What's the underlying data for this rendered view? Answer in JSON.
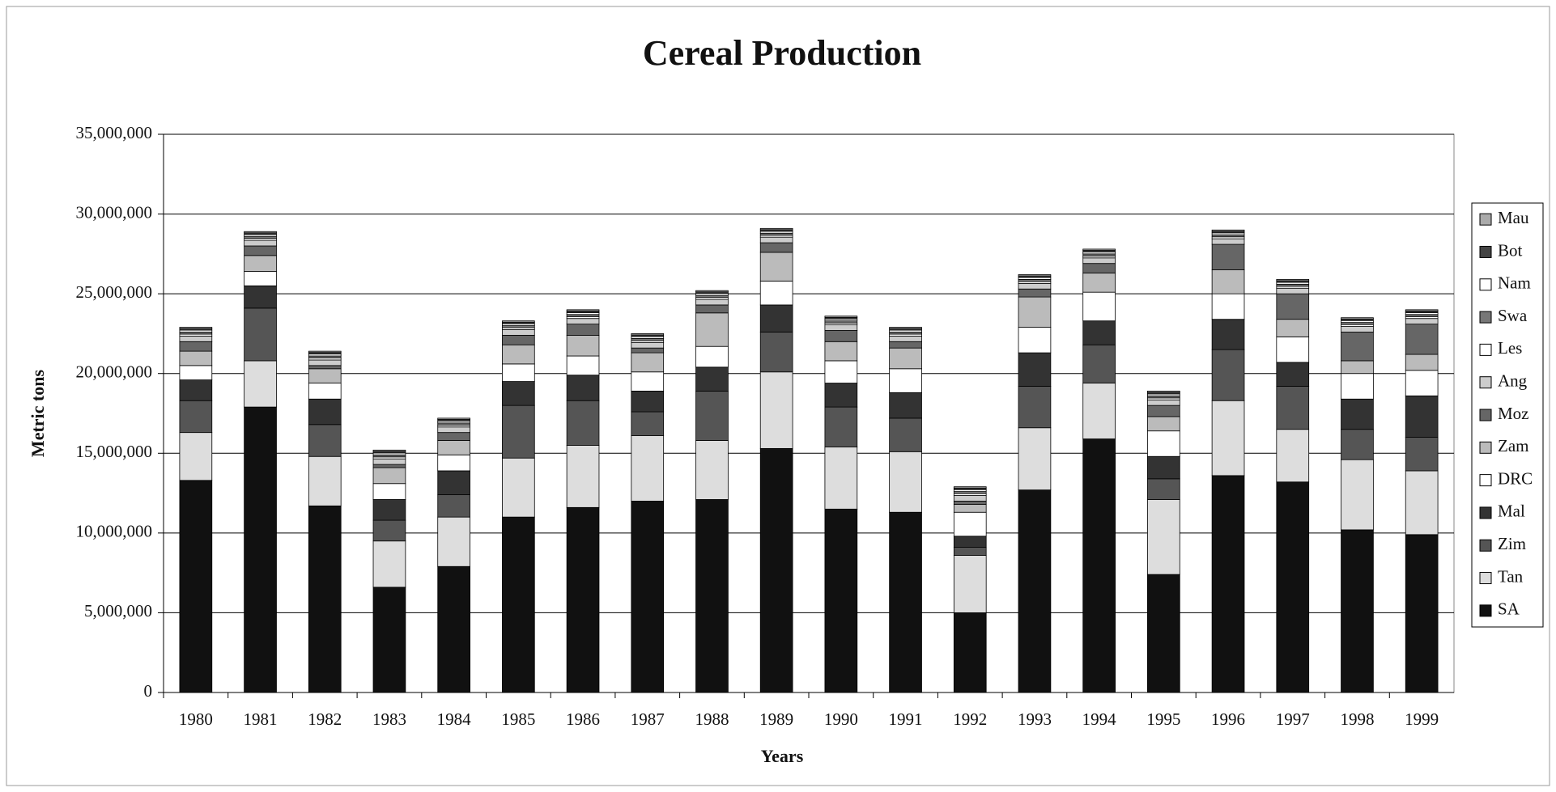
{
  "chart_data": {
    "type": "stacked_bar",
    "title": "Cereal Production",
    "x_label": "Years",
    "y_label": "Metric tons",
    "categories": [
      "1980",
      "1981",
      "1982",
      "1983",
      "1984",
      "1985",
      "1986",
      "1987",
      "1988",
      "1989",
      "1990",
      "1991",
      "1992",
      "1993",
      "1994",
      "1995",
      "1996",
      "1997",
      "1998",
      "1999"
    ],
    "ylim": [
      0,
      35000000
    ],
    "yticks": [
      0,
      {
        "value": 5000000,
        "label": "5,000,000"
      },
      {
        "value": 10000000,
        "label": "10,000,000"
      },
      {
        "value": 15000000,
        "label": "15,000,000"
      },
      {
        "value": 20000000,
        "label": "20,000,000"
      },
      {
        "value": 25000000,
        "label": "25,000,000"
      },
      {
        "value": 30000000,
        "label": "30,000,000"
      },
      {
        "value": 35000000,
        "label": "35,000,000"
      }
    ],
    "grid": true,
    "legend": "right",
    "series": [
      {
        "name": "SA",
        "color": "#111111",
        "values": [
          13300000,
          17900000,
          11700000,
          6600000,
          7900000,
          11000000,
          11600000,
          12000000,
          12100000,
          15300000,
          11500000,
          11300000,
          5000000,
          12700000,
          15900000,
          7400000,
          13600000,
          13200000,
          10200000,
          9900000
        ]
      },
      {
        "name": "Tan",
        "color": "#dddddd",
        "values": [
          3000000,
          2900000,
          3100000,
          2900000,
          3100000,
          3700000,
          3900000,
          4100000,
          3700000,
          4800000,
          3900000,
          3800000,
          3600000,
          3900000,
          3500000,
          4700000,
          4700000,
          3300000,
          4400000,
          4000000
        ]
      },
      {
        "name": "Zim",
        "color": "#555555",
        "values": [
          2000000,
          3300000,
          2000000,
          1300000,
          1400000,
          3300000,
          2800000,
          1500000,
          3100000,
          2500000,
          2500000,
          2100000,
          500000,
          2600000,
          2400000,
          1300000,
          3200000,
          2700000,
          1900000,
          2100000
        ]
      },
      {
        "name": "Mal",
        "color": "#333333",
        "values": [
          1300000,
          1400000,
          1600000,
          1300000,
          1500000,
          1500000,
          1600000,
          1300000,
          1500000,
          1700000,
          1500000,
          1600000,
          700000,
          2100000,
          1500000,
          1400000,
          1900000,
          1500000,
          1900000,
          2600000
        ]
      },
      {
        "name": "DRC",
        "color": "#ffffff",
        "values": [
          900000,
          900000,
          1000000,
          1000000,
          1000000,
          1100000,
          1200000,
          1200000,
          1300000,
          1500000,
          1400000,
          1500000,
          1500000,
          1600000,
          1800000,
          1600000,
          1600000,
          1600000,
          1600000,
          1600000
        ]
      },
      {
        "name": "Zam",
        "color": "#bbbbbb",
        "values": [
          900000,
          1000000,
          900000,
          1000000,
          900000,
          1200000,
          1300000,
          1200000,
          2100000,
          1800000,
          1200000,
          1300000,
          500000,
          1900000,
          1200000,
          900000,
          1500000,
          1100000,
          800000,
          1000000
        ]
      },
      {
        "name": "Moz",
        "color": "#666666",
        "values": [
          600000,
          600000,
          200000,
          200000,
          500000,
          600000,
          700000,
          300000,
          500000,
          600000,
          700000,
          400000,
          200000,
          500000,
          600000,
          700000,
          1600000,
          1600000,
          1800000,
          1900000
        ]
      },
      {
        "name": "Ang",
        "color": "#cccccc",
        "values": [
          350000,
          350000,
          350000,
          350000,
          350000,
          350000,
          350000,
          350000,
          350000,
          350000,
          350000,
          350000,
          350000,
          350000,
          350000,
          350000,
          350000,
          350000,
          350000,
          350000
        ]
      },
      {
        "name": "Les",
        "color": "#ffffff",
        "values": [
          120000,
          120000,
          120000,
          120000,
          120000,
          120000,
          120000,
          120000,
          120000,
          120000,
          120000,
          120000,
          120000,
          120000,
          120000,
          120000,
          120000,
          120000,
          120000,
          120000
        ]
      },
      {
        "name": "Swa",
        "color": "#777777",
        "values": [
          130000,
          130000,
          130000,
          130000,
          130000,
          130000,
          130000,
          130000,
          130000,
          130000,
          130000,
          130000,
          130000,
          130000,
          130000,
          130000,
          130000,
          130000,
          130000,
          130000
        ]
      },
      {
        "name": "Nam",
        "color": "#ffffff",
        "values": [
          120000,
          120000,
          120000,
          120000,
          120000,
          120000,
          120000,
          120000,
          120000,
          120000,
          120000,
          120000,
          120000,
          120000,
          120000,
          120000,
          120000,
          120000,
          120000,
          120000
        ]
      },
      {
        "name": "Bot",
        "color": "#444444",
        "values": [
          100000,
          100000,
          100000,
          100000,
          100000,
          100000,
          100000,
          100000,
          100000,
          100000,
          100000,
          100000,
          100000,
          100000,
          100000,
          100000,
          100000,
          100000,
          100000,
          100000
        ]
      },
      {
        "name": "Mau",
        "color": "#aaaaaa",
        "values": [
          80000,
          80000,
          80000,
          80000,
          80000,
          80000,
          80000,
          80000,
          80000,
          80000,
          80000,
          80000,
          80000,
          80000,
          80000,
          80000,
          80000,
          80000,
          80000,
          80000
        ]
      }
    ]
  }
}
